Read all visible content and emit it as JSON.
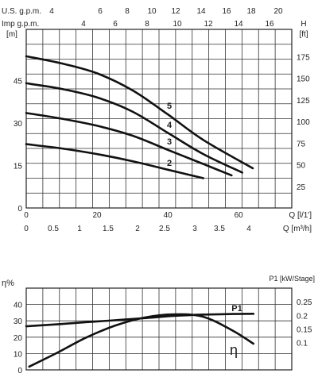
{
  "chart_data": [
    {
      "type": "line",
      "top_axis_1": {
        "label": "U.S. g.p.m.",
        "ticks": [
          "4",
          "6",
          "8",
          "10",
          "12",
          "14",
          "16",
          "18",
          "20"
        ]
      },
      "top_axis_2": {
        "label": "Imp g.p.m.",
        "ticks": [
          "4",
          "6",
          "8",
          "10",
          "12",
          "14",
          "16"
        ]
      },
      "y_left": {
        "unit": "[m]",
        "ticks": [
          "0",
          "15",
          "30",
          "45"
        ],
        "ylim": [
          0,
          63
        ]
      },
      "y_right": {
        "label": "H",
        "unit": "[ft]",
        "ticks": [
          "25",
          "50",
          "75",
          "100",
          "125",
          "150",
          "175"
        ]
      },
      "x_bottom_1": {
        "ticks": [
          "0",
          "20",
          "40",
          "60"
        ],
        "label": "Q [l/1']",
        "xlim": [
          0,
          75
        ]
      },
      "x_bottom_2": {
        "ticks": [
          "0",
          "0.5",
          "1",
          "1.5",
          "2",
          "2.5",
          "3",
          "3.5",
          "4"
        ],
        "label": "Q [m³/h]"
      },
      "grid": true,
      "series": [
        {
          "name": "2",
          "x": [
            0,
            10,
            20,
            30,
            40,
            50
          ],
          "y": [
            22.5,
            21,
            19,
            16.5,
            13.5,
            10.5
          ]
        },
        {
          "name": "3",
          "x": [
            0,
            10,
            20,
            30,
            40,
            50,
            58
          ],
          "y": [
            33.5,
            31.5,
            29,
            25.5,
            20.5,
            15.5,
            11.5
          ]
        },
        {
          "name": "4",
          "x": [
            0,
            10,
            20,
            30,
            40,
            50,
            61
          ],
          "y": [
            44,
            42,
            39,
            34,
            26.5,
            19,
            12.5
          ]
        },
        {
          "name": "5",
          "x": [
            0,
            10,
            20,
            30,
            40,
            50,
            64
          ],
          "y": [
            53.5,
            51,
            47.5,
            41.5,
            33,
            24,
            14
          ]
        }
      ]
    },
    {
      "type": "line",
      "y_left": {
        "label": "η%",
        "ticks": [
          "0",
          "10",
          "20",
          "30",
          "40"
        ],
        "ylim": [
          0,
          50
        ]
      },
      "y_right": {
        "label": "P1 [kW/Stage]",
        "ticks": [
          "0.1",
          "0.15",
          "0.2",
          "0.25"
        ],
        "ylim": [
          0,
          0.3
        ]
      },
      "xlim": [
        0,
        4.5
      ],
      "grid": true,
      "series": [
        {
          "name": "P1",
          "axis": "right",
          "x": [
            0,
            0.5,
            1,
            1.5,
            2,
            2.5,
            3,
            3.5,
            3.85
          ],
          "y": [
            0.16,
            0.167,
            0.175,
            0.182,
            0.19,
            0.198,
            0.203,
            0.205,
            0.206
          ]
        },
        {
          "name": "η",
          "axis": "left",
          "x": [
            0.05,
            0.5,
            1,
            1.5,
            2,
            2.5,
            3,
            3.5,
            3.85
          ],
          "y": [
            2,
            10,
            19.5,
            27,
            32,
            34,
            32.5,
            24,
            16
          ]
        }
      ]
    }
  ]
}
